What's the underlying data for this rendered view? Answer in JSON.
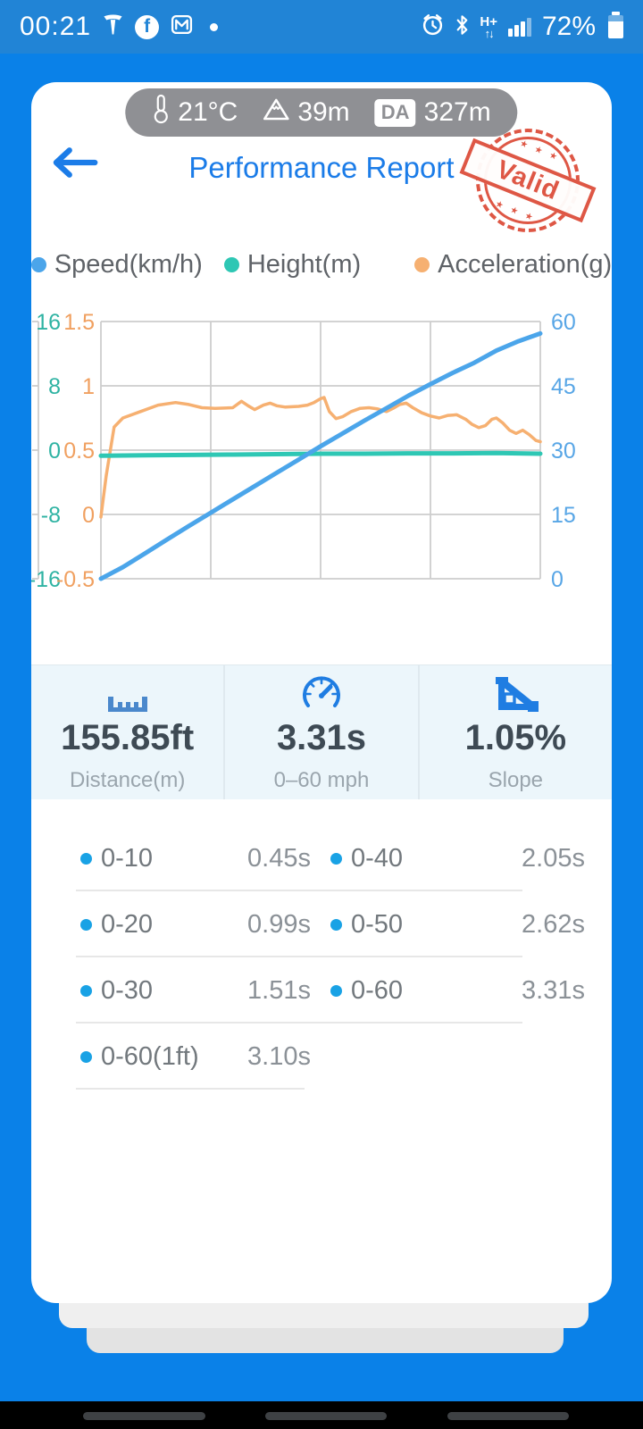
{
  "status_bar": {
    "time": "00:21",
    "battery_percent": "72%"
  },
  "env_pill": {
    "temperature": "21°C",
    "altitude": "39m",
    "da_label": "DA",
    "da_value": "327m"
  },
  "header": {
    "title": "Performance Report",
    "stamp_text": "Valid"
  },
  "legend": [
    {
      "label": "Speed(km/h)",
      "color": "#4ba5ea"
    },
    {
      "label": "Height(m)",
      "color": "#2ec7b4"
    },
    {
      "label": "Acceleration(g)",
      "color": "#f6b071"
    }
  ],
  "chart_data": {
    "type": "line",
    "title": "",
    "grid": {
      "cols": 4,
      "rows": 4,
      "gridlines": true
    },
    "axes": {
      "height": {
        "label": "Height(m)",
        "ticks": [
          "16",
          "8",
          "0",
          "-8",
          "-16"
        ],
        "range": [
          -16,
          16
        ],
        "color": "#2fb3a3",
        "position": "left-outer"
      },
      "accel": {
        "label": "Acceleration(g)",
        "ticks": [
          "1.5",
          "1",
          "0.5",
          "0",
          "-0.5"
        ],
        "range": [
          -0.5,
          1.5
        ],
        "color": "#f0a060",
        "position": "left-inner"
      },
      "speed": {
        "label": "Speed(km/h)",
        "ticks": [
          "60",
          "45",
          "30",
          "15",
          "0"
        ],
        "range": [
          0,
          60
        ],
        "color": "#58a6e6",
        "position": "right"
      }
    },
    "series": [
      {
        "name": "Acceleration(g)",
        "axis": "accel",
        "color": "#f6b071",
        "x": [
          0,
          0.012,
          0.03,
          0.05,
          0.09,
          0.13,
          0.17,
          0.2,
          0.23,
          0.26,
          0.3,
          0.32,
          0.335,
          0.35,
          0.37,
          0.385,
          0.4,
          0.42,
          0.45,
          0.47,
          0.485,
          0.5,
          0.508,
          0.52,
          0.535,
          0.55,
          0.57,
          0.59,
          0.61,
          0.63,
          0.65,
          0.665,
          0.68,
          0.695,
          0.71,
          0.73,
          0.75,
          0.77,
          0.79,
          0.81,
          0.83,
          0.845,
          0.86,
          0.875,
          0.89,
          0.9,
          0.915,
          0.93,
          0.945,
          0.96,
          0.975,
          0.99,
          1.0
        ],
        "values": [
          -0.02,
          0.3,
          0.68,
          0.75,
          0.8,
          0.85,
          0.87,
          0.855,
          0.83,
          0.825,
          0.83,
          0.88,
          0.845,
          0.815,
          0.85,
          0.865,
          0.845,
          0.835,
          0.84,
          0.85,
          0.87,
          0.9,
          0.91,
          0.8,
          0.745,
          0.76,
          0.8,
          0.825,
          0.83,
          0.82,
          0.8,
          0.825,
          0.855,
          0.865,
          0.83,
          0.79,
          0.765,
          0.75,
          0.77,
          0.775,
          0.74,
          0.7,
          0.675,
          0.69,
          0.74,
          0.75,
          0.71,
          0.655,
          0.63,
          0.655,
          0.62,
          0.575,
          0.565
        ]
      },
      {
        "name": "Height(m)",
        "axis": "height",
        "color": "#2ec7b4",
        "x": [
          0,
          0.1,
          0.2,
          0.3,
          0.4,
          0.5,
          0.6,
          0.7,
          0.8,
          0.9,
          1.0
        ],
        "values": [
          -0.7,
          -0.65,
          -0.6,
          -0.55,
          -0.5,
          -0.45,
          -0.45,
          -0.4,
          -0.4,
          -0.35,
          -0.45
        ]
      },
      {
        "name": "Speed(km/h)",
        "axis": "speed",
        "color": "#4ba5ea",
        "x": [
          0,
          0.05,
          0.1,
          0.15,
          0.2,
          0.25,
          0.3,
          0.35,
          0.4,
          0.45,
          0.5,
          0.55,
          0.6,
          0.65,
          0.7,
          0.75,
          0.8,
          0.85,
          0.9,
          0.95,
          1.0
        ],
        "values": [
          0,
          2.7,
          5.9,
          9.1,
          12.3,
          15.4,
          18.5,
          21.6,
          24.7,
          27.8,
          30.9,
          33.9,
          36.9,
          39.8,
          42.7,
          45.4,
          48.0,
          50.4,
          53.2,
          55.4,
          57.2
        ]
      }
    ]
  },
  "stats": [
    {
      "icon": "ruler-icon",
      "value": "155.85ft",
      "label": "Distance(m)"
    },
    {
      "icon": "gauge-icon",
      "value": "3.31s",
      "label": "0–60 mph"
    },
    {
      "icon": "slope-icon",
      "value": "1.05%",
      "label": "Slope"
    }
  ],
  "splits": {
    "rows": [
      [
        {
          "label": "0-10",
          "value": "0.45s"
        },
        {
          "label": "0-40",
          "value": "2.05s"
        }
      ],
      [
        {
          "label": "0-20",
          "value": "0.99s"
        },
        {
          "label": "0-50",
          "value": "2.62s"
        }
      ],
      [
        {
          "label": "0-30",
          "value": "1.51s"
        },
        {
          "label": "0-60",
          "value": "3.31s"
        }
      ],
      [
        {
          "label": "0-60(1ft)",
          "value": "3.10s"
        }
      ]
    ]
  },
  "stamp_decor": "★ ★ ★"
}
